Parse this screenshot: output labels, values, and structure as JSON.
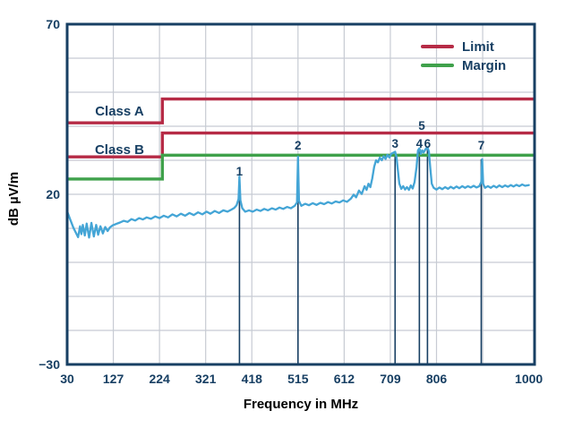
{
  "colors": {
    "navy": "#173f63",
    "red": "#b62b46",
    "green": "#3fa14b",
    "trace_blue": "#44a5d6",
    "grid": "#c7cbd3",
    "background": "#ffffff"
  },
  "chart_data": {
    "type": "line",
    "title": "",
    "xlabel": "Frequency in MHz",
    "ylabel": "dB µV/m",
    "xlim": [
      30,
      1012
    ],
    "ylim": [
      -30,
      70
    ],
    "x_ticks": [
      {
        "label": "30",
        "mhz": 30
      },
      {
        "label": "127",
        "mhz": 127
      },
      {
        "label": "224",
        "mhz": 224
      },
      {
        "label": "321",
        "mhz": 321
      },
      {
        "label": "418",
        "mhz": 418
      },
      {
        "label": "515",
        "mhz": 515
      },
      {
        "label": "612",
        "mhz": 612
      },
      {
        "label": "709",
        "mhz": 709
      },
      {
        "label": "806",
        "mhz": 806
      },
      {
        "label": "1000",
        "mhz": 1000
      }
    ],
    "x_gridlines": [
      127,
      224,
      321,
      418,
      515,
      612,
      709,
      806,
      903
    ],
    "y_ticks": [
      {
        "label": "70",
        "db": 70
      },
      {
        "label": "20",
        "db": 20
      },
      {
        "label": "−30",
        "db": -30
      }
    ],
    "y_gridlines": [
      60,
      50,
      40,
      30,
      20,
      10,
      0,
      -10,
      -20
    ],
    "legend": {
      "position": "top-right",
      "items": [
        {
          "label": "Limit",
          "color_key": "red"
        },
        {
          "label": "Margin",
          "color_key": "green"
        }
      ]
    },
    "limit_lines": [
      {
        "id": "class-a-limit",
        "label": "Class A",
        "color_key": "red",
        "db_low": 41,
        "db_high": 48,
        "step_mhz": 230
      },
      {
        "id": "class-b-limit",
        "label": "Class B",
        "color_key": "red",
        "db_low": 31,
        "db_high": 38,
        "step_mhz": 230
      },
      {
        "id": "margin-line",
        "label": "",
        "color_key": "green",
        "db_low": 24.5,
        "db_high": 31.5,
        "step_mhz": 230
      }
    ],
    "class_label_positions": [
      {
        "text": "Class A",
        "mhz": 140,
        "db": 44.5
      },
      {
        "text": "Class B",
        "mhz": 140,
        "db": 33.2
      }
    ],
    "peaks": [
      {
        "n": "1",
        "mhz": 392,
        "db": 25.2,
        "label_db": 26.8,
        "line": true
      },
      {
        "n": "2",
        "mhz": 515,
        "db": 31.0,
        "label_db": 34.5,
        "line": true
      },
      {
        "n": "3",
        "mhz": 719,
        "db": 32.5,
        "label_db": 35.0,
        "line": true
      },
      {
        "n": "4",
        "mhz": 770,
        "db": 33.5,
        "label_db": 35.0,
        "line": true
      },
      {
        "n": "5",
        "mhz": 775,
        "db": 33.0,
        "label_db": 40.3,
        "line": false
      },
      {
        "n": "6",
        "mhz": 787,
        "db": 33.8,
        "label_db": 35.0,
        "line": true
      },
      {
        "n": "7",
        "mhz": 900,
        "db": 30.3,
        "label_db": 34.5,
        "line": true
      }
    ],
    "series": [
      {
        "name": "measured-emissions",
        "color_key": "trace_blue",
        "points": [
          [
            30,
            15
          ],
          [
            34,
            13.5
          ],
          [
            38,
            12
          ],
          [
            43,
            10.2
          ],
          [
            48,
            8.8
          ],
          [
            53,
            7.4
          ],
          [
            57,
            10.6
          ],
          [
            60,
            8.3
          ],
          [
            63,
            11
          ],
          [
            67,
            7.9
          ],
          [
            71,
            11.4
          ],
          [
            76,
            7.3
          ],
          [
            81,
            11.6
          ],
          [
            86,
            7.6
          ],
          [
            91,
            11
          ],
          [
            95,
            8.1
          ],
          [
            100,
            10.6
          ],
          [
            105,
            8.5
          ],
          [
            110,
            10.4
          ],
          [
            115,
            9.2
          ],
          [
            120,
            10.3
          ],
          [
            126,
            10.9
          ],
          [
            133,
            11.3
          ],
          [
            141,
            11.7
          ],
          [
            149,
            12.2
          ],
          [
            157,
            11.9
          ],
          [
            165,
            12.7
          ],
          [
            173,
            12.3
          ],
          [
            181,
            13
          ],
          [
            189,
            12.6
          ],
          [
            197,
            13.2
          ],
          [
            206,
            12.8
          ],
          [
            215,
            13.5
          ],
          [
            224,
            13
          ],
          [
            233,
            13.7
          ],
          [
            242,
            13.2
          ],
          [
            251,
            14.1
          ],
          [
            260,
            13.5
          ],
          [
            269,
            14.3
          ],
          [
            278,
            13.7
          ],
          [
            287,
            14.5
          ],
          [
            296,
            13.9
          ],
          [
            305,
            14.7
          ],
          [
            314,
            14.1
          ],
          [
            323,
            14.9
          ],
          [
            331,
            14.3
          ],
          [
            340,
            15.1
          ],
          [
            349,
            14.5
          ],
          [
            358,
            15.3
          ],
          [
            367,
            14.9
          ],
          [
            375,
            15.5
          ],
          [
            381,
            16
          ],
          [
            386,
            16.8
          ],
          [
            390,
            18.6
          ],
          [
            392,
            25.2
          ],
          [
            394,
            18.2
          ],
          [
            398,
            15.9
          ],
          [
            404,
            14.9
          ],
          [
            412,
            15.3
          ],
          [
            420,
            14.9
          ],
          [
            428,
            15.5
          ],
          [
            436,
            15.1
          ],
          [
            444,
            15.7
          ],
          [
            452,
            15.3
          ],
          [
            460,
            15.9
          ],
          [
            468,
            15.5
          ],
          [
            476,
            16.1
          ],
          [
            484,
            15.7
          ],
          [
            492,
            16.3
          ],
          [
            500,
            15.9
          ],
          [
            508,
            16.6
          ],
          [
            513,
            17.6
          ],
          [
            515,
            31
          ],
          [
            517,
            18.1
          ],
          [
            522,
            16.6
          ],
          [
            530,
            17.2
          ],
          [
            538,
            16.8
          ],
          [
            546,
            17.4
          ],
          [
            554,
            16.9
          ],
          [
            562,
            17.5
          ],
          [
            570,
            17.1
          ],
          [
            578,
            17.7
          ],
          [
            586,
            17.3
          ],
          [
            594,
            17.9
          ],
          [
            602,
            17.6
          ],
          [
            610,
            18.2
          ],
          [
            618,
            17.8
          ],
          [
            626,
            18.7
          ],
          [
            632,
            19.9
          ],
          [
            637,
            19.1
          ],
          [
            643,
            21.1
          ],
          [
            649,
            20.1
          ],
          [
            655,
            22.4
          ],
          [
            659,
            21.3
          ],
          [
            663,
            23.1
          ],
          [
            667,
            22.1
          ],
          [
            671,
            24.6
          ],
          [
            675,
            28.1
          ],
          [
            679,
            30
          ],
          [
            683,
            29.4
          ],
          [
            687,
            30.8
          ],
          [
            691,
            30
          ],
          [
            695,
            31.2
          ],
          [
            699,
            30.4
          ],
          [
            703,
            31.6
          ],
          [
            707,
            30.8
          ],
          [
            711,
            31.9
          ],
          [
            715,
            32.2
          ],
          [
            719,
            32.5
          ],
          [
            722,
            31
          ],
          [
            725,
            27
          ],
          [
            728,
            23.1
          ],
          [
            732,
            21.6
          ],
          [
            736,
            22.4
          ],
          [
            740,
            21.4
          ],
          [
            744,
            22.1
          ],
          [
            748,
            21.3
          ],
          [
            752,
            22.6
          ],
          [
            756,
            21.7
          ],
          [
            760,
            23.6
          ],
          [
            764,
            28
          ],
          [
            767,
            32.9
          ],
          [
            770,
            33.5
          ],
          [
            773,
            31.9
          ],
          [
            776,
            32.9
          ],
          [
            779,
            32.3
          ],
          [
            783,
            33.3
          ],
          [
            787,
            33.8
          ],
          [
            790,
            32.6
          ],
          [
            793,
            27.6
          ],
          [
            796,
            23.1
          ],
          [
            800,
            21.9
          ],
          [
            806,
            21.4
          ],
          [
            812,
            22
          ],
          [
            818,
            21.5
          ],
          [
            824,
            22.1
          ],
          [
            830,
            21.6
          ],
          [
            836,
            22.2
          ],
          [
            842,
            21.7
          ],
          [
            848,
            22.3
          ],
          [
            854,
            21.8
          ],
          [
            860,
            22.4
          ],
          [
            866,
            21.9
          ],
          [
            872,
            22.4
          ],
          [
            878,
            22
          ],
          [
            884,
            22.5
          ],
          [
            890,
            22
          ],
          [
            896,
            22.4
          ],
          [
            900,
            23.6
          ],
          [
            902,
            30.3
          ],
          [
            904,
            23.1
          ],
          [
            908,
            21.9
          ],
          [
            914,
            22.4
          ],
          [
            920,
            21.9
          ],
          [
            926,
            22.5
          ],
          [
            932,
            22
          ],
          [
            938,
            22.6
          ],
          [
            944,
            22.1
          ],
          [
            950,
            22.6
          ],
          [
            956,
            22.2
          ],
          [
            962,
            22.7
          ],
          [
            968,
            22.3
          ],
          [
            974,
            22.8
          ],
          [
            980,
            22.4
          ],
          [
            986,
            22.9
          ],
          [
            992,
            22.5
          ],
          [
            1000,
            22.7
          ]
        ]
      }
    ]
  }
}
